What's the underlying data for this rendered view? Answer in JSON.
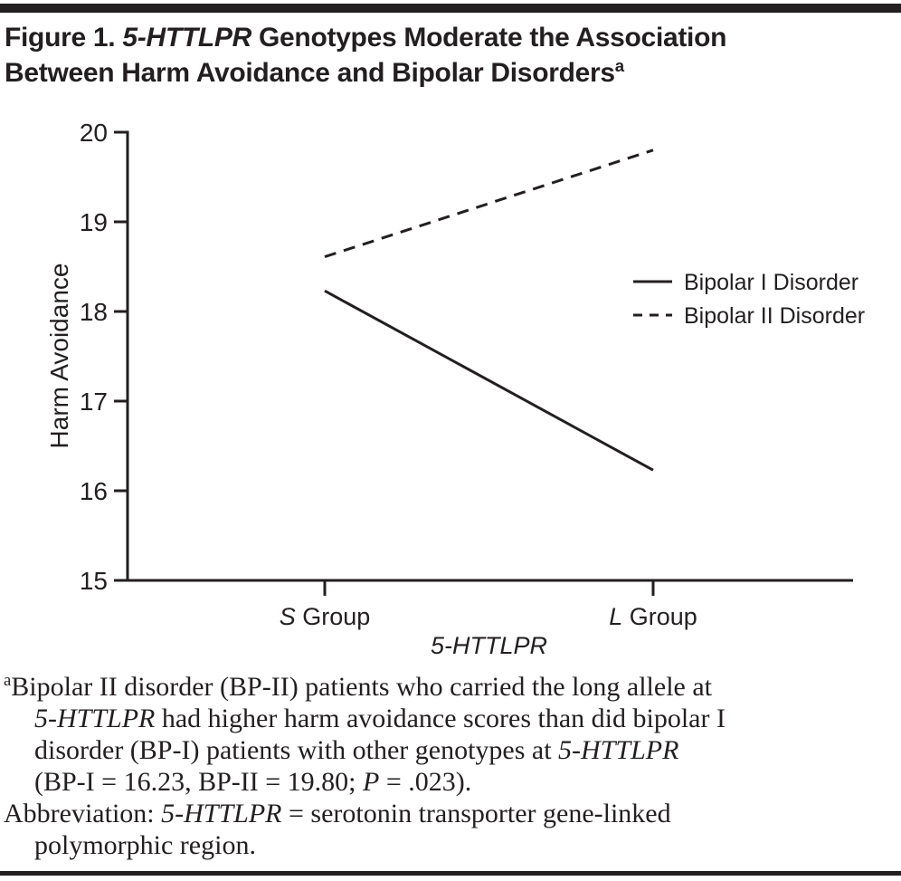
{
  "header": {
    "line1_prefix": "Figure 1. ",
    "line1_gene": "5-HTTLPR",
    "line1_rest": " Genotypes Moderate the Association",
    "line2": "Between Harm Avoidance and Bipolar Disorders",
    "line2_sup": "a"
  },
  "chart_data": {
    "type": "line",
    "title": "",
    "xlabel": "5-HTTLPR",
    "ylabel": "Harm Avoidance",
    "ylim": [
      15,
      20
    ],
    "yticks": [
      15,
      16,
      17,
      18,
      19,
      20
    ],
    "grid": false,
    "legend_position": "right-middle",
    "categories": [
      {
        "em": "S",
        "text": " Group"
      },
      {
        "em": "L",
        "text": " Group"
      }
    ],
    "series": [
      {
        "name": "Bipolar I Disorder",
        "line_style": "solid",
        "values": [
          18.23,
          16.23
        ]
      },
      {
        "name": "Bipolar II Disorder",
        "line_style": "dashed",
        "values": [
          18.61,
          19.8
        ]
      }
    ],
    "line_color": "#231f20"
  },
  "footnote": {
    "sup": "a",
    "l1": "Bipolar II disorder (BP-II) patients who carried the long allele at",
    "l2_gene": "5-HTTLPR",
    "l2": " had higher harm avoidance scores than did bipolar I",
    "l3": "disorder (BP-I) patients with other genotypes at ",
    "l3_gene": "5-HTTLPR",
    "l4a": "(BP-I = 16.23, BP-II = 19.80; ",
    "l4_p": "P",
    "l4b": " = .023).",
    "l5a": "Abbreviation: ",
    "l5_gene": "5-HTTLPR",
    "l5b": " = serotonin transporter gene-linked",
    "l6": "polymorphic region."
  }
}
